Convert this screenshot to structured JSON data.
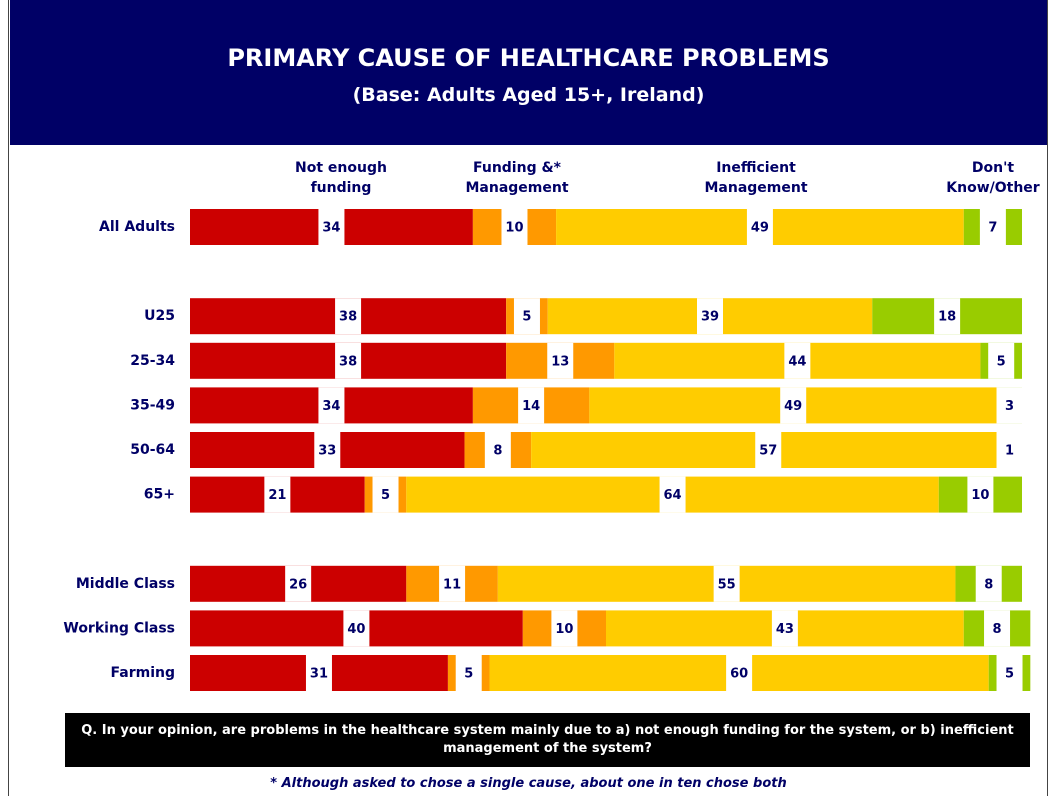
{
  "chart_data": {
    "type": "bar",
    "orientation": "horizontal",
    "stacked": true,
    "title": "PRIMARY CAUSE OF HEALTHCARE PROBLEMS",
    "subtitle": "(Base: Adults Aged 15+, Ireland)",
    "question": "Q. In your opinion, are problems in the healthcare system mainly due to a) not enough funding for the system, or b) inefficient management of the system?",
    "footnote": "* Although asked to chose a single cause, about one in ten chose both",
    "categories": [
      "All Adults",
      null,
      "U25",
      "25-34",
      "35-49",
      "50-64",
      "65+",
      null,
      "Middle Class",
      "Working Class",
      "Farming"
    ],
    "series": [
      {
        "name": "Not enough funding",
        "color": "#cc0000",
        "values": [
          34,
          null,
          38,
          38,
          34,
          33,
          21,
          null,
          26,
          40,
          31
        ]
      },
      {
        "name": "Funding &* Management",
        "color": "#ff9900",
        "values": [
          10,
          null,
          5,
          13,
          14,
          8,
          5,
          null,
          11,
          10,
          5
        ]
      },
      {
        "name": "Inefficient Management",
        "color": "#ffcc00",
        "values": [
          49,
          null,
          39,
          44,
          49,
          57,
          64,
          null,
          55,
          43,
          60
        ]
      },
      {
        "name": "Don't Know/Other",
        "color": "#99cc00",
        "values": [
          7,
          null,
          18,
          5,
          3,
          1,
          10,
          null,
          8,
          8,
          5
        ]
      }
    ]
  }
}
